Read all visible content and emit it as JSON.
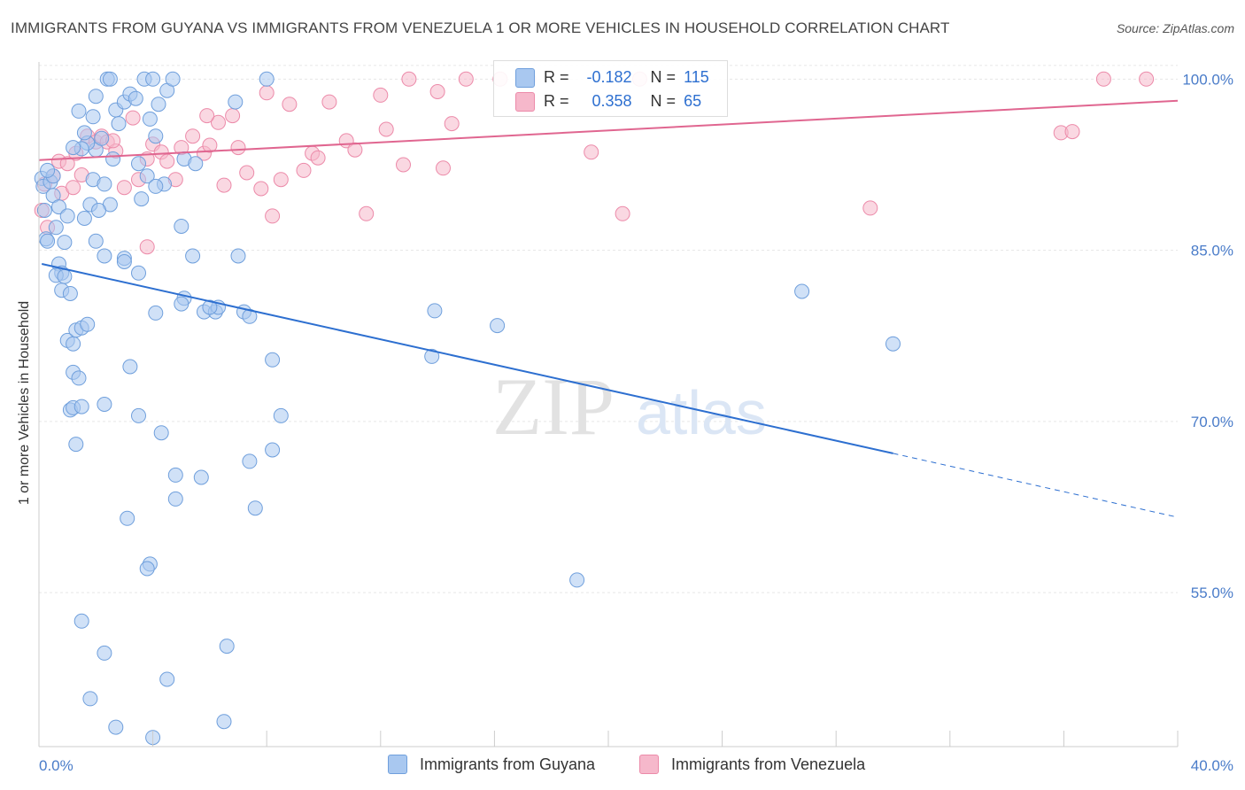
{
  "header": {
    "title": "IMMIGRANTS FROM GUYANA VS IMMIGRANTS FROM VENEZUELA 1 OR MORE VEHICLES IN HOUSEHOLD CORRELATION CHART",
    "source": "Source: ZipAtlas.com"
  },
  "watermark": {
    "zip": "ZIP",
    "atlas": "atlas"
  },
  "legend_top": {
    "rows": [
      {
        "r_label": "R =",
        "r_value": "-0.182",
        "n_label": "N =",
        "n_value": "115"
      },
      {
        "r_label": "R =",
        "r_value": "0.358",
        "n_label": "N =",
        "n_value": "65"
      }
    ]
  },
  "legend_bottom": {
    "series_a": "Immigrants from Guyana",
    "series_b": "Immigrants from Venezuela"
  },
  "colors": {
    "guyana_fill": "#a9c8f0",
    "guyana_stroke": "#6f9fdc",
    "guyana_line": "#2d6fd0",
    "venezuela_fill": "#f6b8cb",
    "venezuela_stroke": "#ec8aa9",
    "venezuela_line": "#e06690",
    "tick_text": "#4a7cc9"
  },
  "chart_data": {
    "type": "scatter",
    "title": "IMMIGRANTS FROM GUYANA VS IMMIGRANTS FROM VENEZUELA 1 OR MORE VEHICLES IN HOUSEHOLD CORRELATION CHART",
    "xlabel": "",
    "ylabel": "1 or more Vehicles in Household",
    "xlim": [
      0,
      40
    ],
    "ylim": [
      41.5,
      101.5
    ],
    "x_tick_labels": [
      "0.0%",
      "40.0%"
    ],
    "y_ticks": [
      55,
      70,
      85,
      100
    ],
    "y_tick_labels": [
      "55.0%",
      "70.0%",
      "85.0%",
      "100.0%"
    ],
    "grid": true,
    "legend_position": "top-center",
    "series": [
      {
        "name": "Immigrants from Guyana",
        "R": -0.182,
        "N": 115,
        "trend": {
          "x0": 0.1,
          "y0": 83.8,
          "x1": 30.0,
          "y1": 67.2,
          "dashed_to_x": 40.0,
          "dashed_to_y": 61.6
        },
        "points": [
          [
            0.1,
            91.3
          ],
          [
            0.15,
            90.6
          ],
          [
            0.2,
            88.5
          ],
          [
            0.25,
            86.0
          ],
          [
            0.3,
            85.8
          ],
          [
            0.4,
            91.0
          ],
          [
            0.5,
            89.8
          ],
          [
            0.6,
            87.0
          ],
          [
            0.7,
            83.8
          ],
          [
            0.8,
            83.0
          ],
          [
            0.5,
            91.5
          ],
          [
            0.7,
            88.8
          ],
          [
            0.9,
            85.7
          ],
          [
            0.6,
            82.8
          ],
          [
            0.9,
            82.7
          ],
          [
            0.8,
            81.5
          ],
          [
            1.0,
            88.0
          ],
          [
            1.1,
            81.2
          ],
          [
            1.0,
            77.1
          ],
          [
            1.2,
            76.8
          ],
          [
            1.3,
            78.0
          ],
          [
            1.5,
            78.2
          ],
          [
            1.7,
            78.5
          ],
          [
            1.2,
            74.3
          ],
          [
            1.4,
            73.8
          ],
          [
            1.1,
            71.0
          ],
          [
            1.2,
            71.2
          ],
          [
            1.5,
            71.3
          ],
          [
            1.3,
            68.0
          ],
          [
            1.6,
            87.8
          ],
          [
            1.8,
            89.0
          ],
          [
            1.9,
            91.2
          ],
          [
            2.0,
            93.8
          ],
          [
            1.7,
            94.4
          ],
          [
            1.5,
            93.9
          ],
          [
            1.2,
            94.0
          ],
          [
            1.4,
            97.2
          ],
          [
            1.9,
            96.7
          ],
          [
            2.0,
            98.5
          ],
          [
            2.4,
            100.0
          ],
          [
            2.5,
            100.0
          ],
          [
            2.7,
            97.3
          ],
          [
            3.0,
            98.0
          ],
          [
            3.2,
            98.7
          ],
          [
            3.4,
            98.3
          ],
          [
            3.7,
            100.0
          ],
          [
            3.9,
            96.5
          ],
          [
            4.0,
            100.0
          ],
          [
            4.2,
            97.8
          ],
          [
            4.5,
            99.0
          ],
          [
            4.7,
            100.0
          ],
          [
            2.2,
            94.8
          ],
          [
            2.6,
            93.0
          ],
          [
            2.3,
            90.8
          ],
          [
            2.5,
            89.0
          ],
          [
            2.1,
            88.5
          ],
          [
            2.0,
            85.8
          ],
          [
            2.3,
            84.5
          ],
          [
            3.0,
            84.3
          ],
          [
            3.0,
            84.0
          ],
          [
            3.5,
            83.0
          ],
          [
            3.6,
            89.5
          ],
          [
            3.8,
            91.5
          ],
          [
            3.5,
            92.6
          ],
          [
            4.1,
            95.0
          ],
          [
            4.4,
            90.8
          ],
          [
            4.1,
            90.6
          ],
          [
            5.1,
            93.0
          ],
          [
            5.5,
            92.6
          ],
          [
            5.0,
            87.1
          ],
          [
            5.4,
            84.5
          ],
          [
            5.1,
            80.8
          ],
          [
            5.0,
            80.3
          ],
          [
            4.1,
            79.5
          ],
          [
            5.8,
            79.6
          ],
          [
            6.2,
            79.6
          ],
          [
            7.2,
            79.6
          ],
          [
            7.4,
            79.2
          ],
          [
            6.3,
            80.0
          ],
          [
            6.0,
            80.0
          ],
          [
            7.0,
            84.5
          ],
          [
            6.9,
            98.0
          ],
          [
            8.0,
            100.0
          ],
          [
            3.2,
            74.8
          ],
          [
            3.5,
            70.5
          ],
          [
            4.3,
            69.0
          ],
          [
            2.3,
            71.5
          ],
          [
            8.2,
            75.4
          ],
          [
            8.5,
            70.5
          ],
          [
            8.2,
            67.5
          ],
          [
            7.4,
            66.5
          ],
          [
            7.6,
            62.4
          ],
          [
            4.8,
            65.3
          ],
          [
            5.7,
            65.1
          ],
          [
            4.8,
            63.2
          ],
          [
            3.1,
            61.5
          ],
          [
            3.9,
            57.5
          ],
          [
            3.8,
            57.1
          ],
          [
            1.5,
            52.5
          ],
          [
            2.3,
            49.7
          ],
          [
            4.5,
            47.4
          ],
          [
            6.6,
            50.3
          ],
          [
            1.8,
            45.7
          ],
          [
            2.7,
            43.2
          ],
          [
            4.0,
            42.3
          ],
          [
            6.5,
            43.7
          ],
          [
            13.9,
            79.7
          ],
          [
            16.1,
            78.4
          ],
          [
            13.8,
            75.7
          ],
          [
            18.9,
            56.1
          ],
          [
            26.8,
            81.4
          ],
          [
            30.0,
            76.8
          ],
          [
            1.6,
            95.3
          ],
          [
            2.8,
            96.1
          ],
          [
            0.3,
            92.0
          ]
        ]
      },
      {
        "name": "Immigrants from Venezuela",
        "R": 0.358,
        "N": 65,
        "trend": {
          "x0": 0.0,
          "y0": 92.9,
          "x1": 40.0,
          "y1": 98.1
        },
        "points": [
          [
            0.1,
            88.5
          ],
          [
            0.2,
            90.8
          ],
          [
            0.3,
            87.0
          ],
          [
            0.5,
            91.5
          ],
          [
            0.7,
            92.8
          ],
          [
            0.8,
            90.0
          ],
          [
            1.0,
            92.6
          ],
          [
            1.3,
            93.5
          ],
          [
            1.5,
            91.6
          ],
          [
            1.7,
            95.0
          ],
          [
            2.0,
            94.5
          ],
          [
            2.2,
            95.0
          ],
          [
            2.4,
            94.5
          ],
          [
            2.7,
            93.7
          ],
          [
            3.0,
            90.5
          ],
          [
            3.5,
            91.2
          ],
          [
            3.8,
            93.0
          ],
          [
            4.0,
            94.3
          ],
          [
            4.3,
            93.6
          ],
          [
            4.5,
            92.8
          ],
          [
            4.8,
            91.2
          ],
          [
            5.0,
            94.0
          ],
          [
            5.4,
            95.0
          ],
          [
            5.8,
            93.5
          ],
          [
            6.0,
            94.2
          ],
          [
            6.3,
            96.2
          ],
          [
            6.5,
            90.7
          ],
          [
            6.8,
            96.8
          ],
          [
            7.0,
            94.0
          ],
          [
            7.3,
            91.8
          ],
          [
            7.8,
            90.4
          ],
          [
            8.0,
            98.8
          ],
          [
            8.2,
            88.0
          ],
          [
            8.5,
            91.2
          ],
          [
            8.8,
            97.8
          ],
          [
            9.3,
            92.0
          ],
          [
            9.6,
            93.5
          ],
          [
            9.8,
            93.1
          ],
          [
            10.2,
            98.0
          ],
          [
            10.8,
            94.6
          ],
          [
            11.1,
            93.8
          ],
          [
            11.5,
            88.2
          ],
          [
            12.0,
            98.6
          ],
          [
            12.2,
            95.6
          ],
          [
            12.8,
            92.5
          ],
          [
            13.0,
            100.0
          ],
          [
            14.0,
            98.9
          ],
          [
            14.2,
            92.2
          ],
          [
            14.5,
            96.1
          ],
          [
            15.0,
            100.0
          ],
          [
            16.2,
            100.0
          ],
          [
            17.2,
            100.0
          ],
          [
            19.4,
            93.6
          ],
          [
            20.5,
            88.2
          ],
          [
            21.1,
            100.0
          ],
          [
            29.2,
            88.7
          ],
          [
            35.9,
            95.3
          ],
          [
            36.3,
            95.4
          ],
          [
            37.4,
            100.0
          ],
          [
            38.9,
            100.0
          ],
          [
            3.8,
            85.3
          ],
          [
            5.9,
            96.8
          ],
          [
            3.3,
            96.6
          ],
          [
            2.6,
            94.6
          ],
          [
            1.2,
            90.5
          ]
        ]
      }
    ]
  }
}
